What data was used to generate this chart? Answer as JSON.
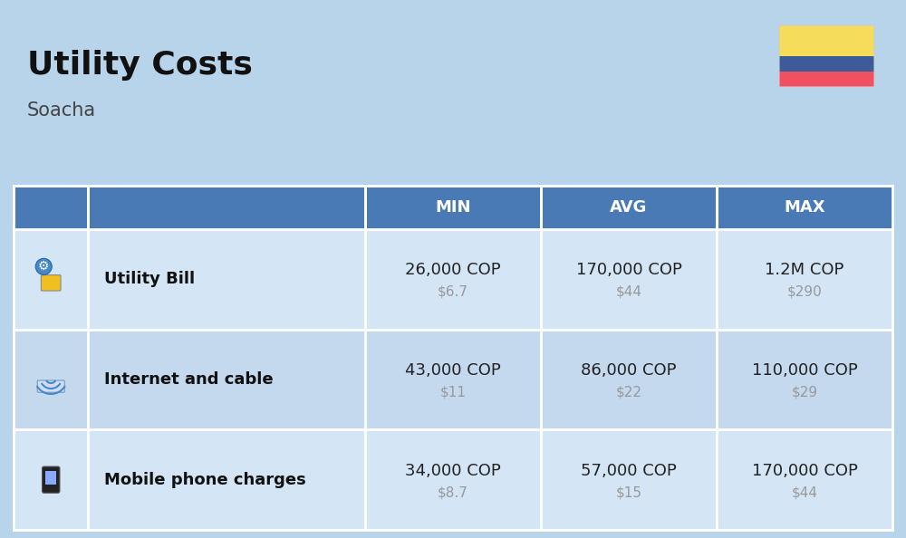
{
  "title": "Utility Costs",
  "subtitle": "Soacha",
  "bg_color": "#b8d4ea",
  "header_bg": "#4a7ab5",
  "header_text_color": "#ffffff",
  "row_bg_even": "#d4e5f5",
  "row_bg_odd": "#c4d8ee",
  "table_border_color": "#ffffff",
  "col_headers": [
    "MIN",
    "AVG",
    "MAX"
  ],
  "rows": [
    {
      "label": "Utility Bill",
      "min_cop": "26,000 COP",
      "min_usd": "$6.7",
      "avg_cop": "170,000 COP",
      "avg_usd": "$44",
      "max_cop": "1.2M COP",
      "max_usd": "$290"
    },
    {
      "label": "Internet and cable",
      "min_cop": "43,000 COP",
      "min_usd": "$11",
      "avg_cop": "86,000 COP",
      "avg_usd": "$22",
      "max_cop": "110,000 COP",
      "max_usd": "$29"
    },
    {
      "label": "Mobile phone charges",
      "min_cop": "34,000 COP",
      "min_usd": "$8.7",
      "avg_cop": "57,000 COP",
      "avg_usd": "$15",
      "max_cop": "170,000 COP",
      "max_usd": "$44"
    }
  ],
  "flag_yellow": "#f5dc5a",
  "flag_blue": "#3d5a99",
  "flag_red": "#f05060",
  "title_fontsize": 26,
  "subtitle_fontsize": 15,
  "header_fontsize": 13,
  "label_fontsize": 13,
  "cop_fontsize": 13,
  "usd_fontsize": 11,
  "usd_text_color": "#999999",
  "label_text_color": "#111111",
  "cop_text_color": "#222222"
}
